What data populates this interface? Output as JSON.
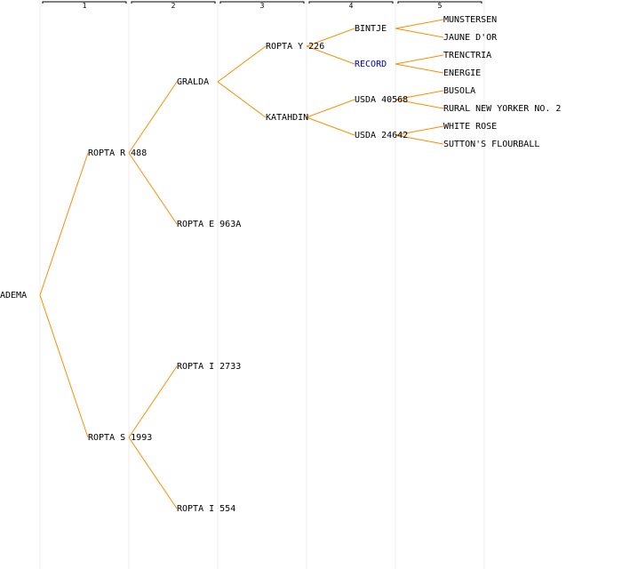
{
  "generations": [
    {
      "label": "1"
    },
    {
      "label": "2"
    },
    {
      "label": "3"
    },
    {
      "label": "4"
    },
    {
      "label": "5"
    }
  ],
  "tree": {
    "name": "ADEMA",
    "parents": [
      {
        "name": "ROPTA R 488",
        "parents": [
          {
            "name": "GRALDA",
            "parents": [
              {
                "name": "ROPTA Y 226",
                "parents": [
                  {
                    "name": "BINTJE",
                    "parents": [
                      {
                        "name": "MUNSTERSEN"
                      },
                      {
                        "name": "JAUNE D'OR"
                      }
                    ]
                  },
                  {
                    "name": "RECORD",
                    "highlight": true,
                    "parents": [
                      {
                        "name": "TRENCTRIA"
                      },
                      {
                        "name": "ENERGIE"
                      }
                    ]
                  }
                ]
              },
              {
                "name": "KATAHDIN",
                "parents": [
                  {
                    "name": "USDA 40568",
                    "parents": [
                      {
                        "name": "BUSOLA"
                      },
                      {
                        "name": "RURAL NEW YORKER NO. 2"
                      }
                    ]
                  },
                  {
                    "name": "USDA 24642",
                    "parents": [
                      {
                        "name": "WHITE ROSE"
                      },
                      {
                        "name": "SUTTON'S FLOURBALL"
                      }
                    ]
                  }
                ]
              }
            ]
          },
          {
            "name": "ROPTA E 963A"
          }
        ]
      },
      {
        "name": "ROPTA S 1993",
        "parents": [
          {
            "name": "ROPTA I 2733"
          },
          {
            "name": "ROPTA I 554"
          }
        ]
      }
    ]
  }
}
